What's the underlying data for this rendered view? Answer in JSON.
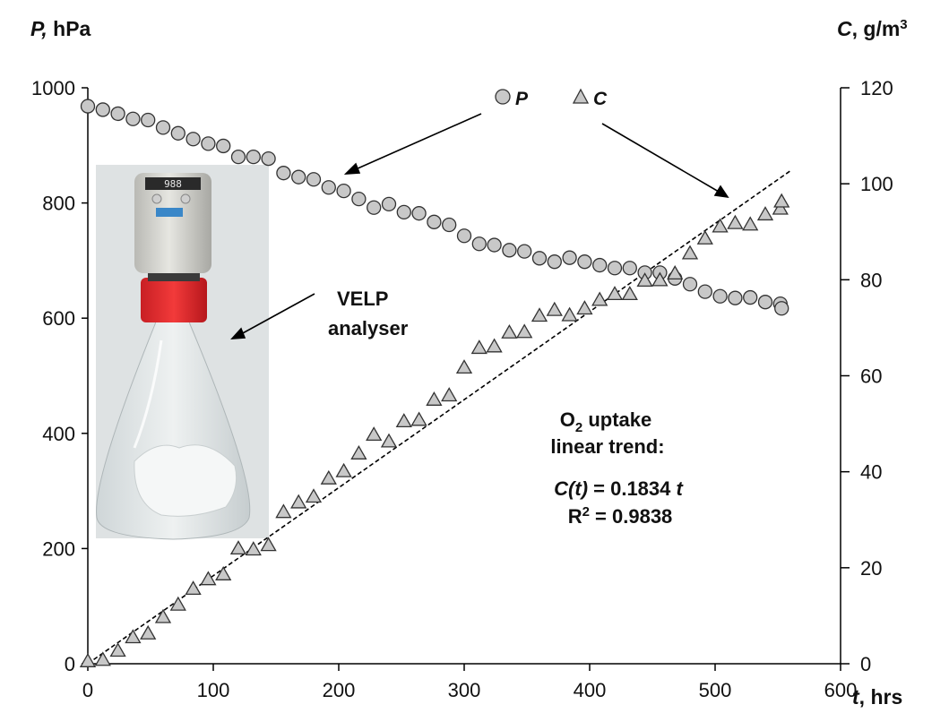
{
  "chart_data": {
    "type": "scatter",
    "x_axis": {
      "label_var": "t",
      "label_unit": ", hrs",
      "range": [
        0,
        600
      ],
      "ticks": [
        "0",
        "100",
        "200",
        "300",
        "400",
        "500",
        "600"
      ]
    },
    "y_left": {
      "label_var": "P,",
      "label_unit": " hPa",
      "range": [
        0,
        1000
      ],
      "ticks": [
        "0",
        "200",
        "400",
        "600",
        "800",
        "1000"
      ]
    },
    "y_right": {
      "label_var": "C",
      "label_unit": ", g/m",
      "label_sup": "3",
      "range": [
        0,
        120
      ],
      "ticks": [
        "0",
        "20",
        "40",
        "60",
        "80",
        "100",
        "120"
      ]
    },
    "legend": {
      "placement": "top-center"
    },
    "series": [
      {
        "name": "P",
        "axis": "left",
        "marker": "circle",
        "color": "#c8c8c8",
        "x": [
          0,
          12,
          24,
          36,
          48,
          60,
          72,
          84,
          96,
          108,
          120,
          132,
          144,
          156,
          168,
          180,
          192,
          204,
          216,
          228,
          240,
          252,
          264,
          276,
          288,
          300,
          312,
          324,
          336,
          348,
          360,
          372,
          384,
          396,
          408,
          420,
          432,
          444,
          456,
          468,
          480,
          492,
          504,
          516,
          528,
          540,
          552,
          553
        ],
        "y": [
          968,
          962,
          955,
          946,
          944,
          931,
          921,
          911,
          903,
          899,
          880,
          880,
          877,
          852,
          845,
          841,
          827,
          821,
          807,
          792,
          798,
          784,
          782,
          767,
          762,
          743,
          729,
          727,
          718,
          716,
          704,
          698,
          705,
          698,
          692,
          687,
          687,
          679,
          679,
          669,
          659,
          646,
          638,
          635,
          636,
          628,
          625,
          617
        ]
      },
      {
        "name": "C",
        "axis": "right",
        "marker": "triangle",
        "color": "#c8c8c8",
        "x": [
          0,
          12,
          24,
          36,
          48,
          60,
          72,
          84,
          96,
          108,
          120,
          132,
          144,
          156,
          168,
          180,
          192,
          204,
          216,
          228,
          240,
          252,
          264,
          276,
          288,
          300,
          312,
          324,
          336,
          348,
          360,
          372,
          384,
          396,
          408,
          420,
          432,
          444,
          456,
          468,
          480,
          492,
          504,
          516,
          528,
          540,
          552,
          553
        ],
        "y": [
          0.5,
          0.8,
          2.7,
          5.5,
          6.3,
          9.7,
          12.3,
          15.6,
          17.6,
          18.6,
          24,
          23.8,
          24.7,
          31.6,
          33.6,
          34.8,
          38.6,
          40.1,
          43.8,
          47.7,
          46.3,
          50.5,
          50.8,
          55,
          55.9,
          61.7,
          65.8,
          66.1,
          69,
          69.1,
          72.5,
          73.7,
          72.6,
          74,
          75.8,
          77,
          77,
          79.8,
          79.9,
          81.3,
          85.5,
          88.6,
          91.1,
          91.8,
          91.5,
          93.6,
          94.8,
          96.3
        ]
      }
    ],
    "trendline": {
      "label": "O2 uptake linear trend",
      "slope": 0.1834,
      "intercept": 0,
      "x_range": [
        0,
        560
      ],
      "style": "dashed",
      "axis": "right"
    },
    "annotations": {
      "velp_line1": "VELP",
      "velp_line2": "analyser",
      "o2_pre": "O",
      "o2_sub": "2",
      "o2_post": " uptake",
      "trend_line2": "linear trend:",
      "eq_lhs": "C(t)",
      "eq_mid": " = 0.1834 ",
      "eq_t": "t",
      "r2_pre": "R",
      "r2_sup": "2",
      "r2_post": " = 0.9838"
    },
    "inset_display": "988"
  }
}
